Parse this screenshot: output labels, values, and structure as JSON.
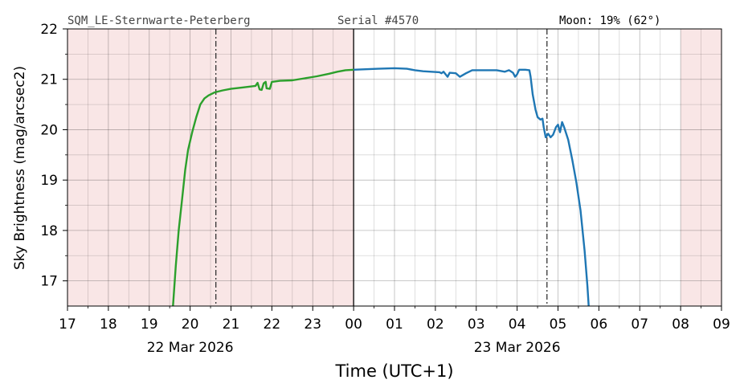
{
  "header": {
    "station": "SQM_LE-Sternwarte-Peterberg",
    "serial": "Serial #4570",
    "moon": "Moon: 19% (62°)"
  },
  "chart_data": {
    "type": "line",
    "title": "",
    "xlabel": "Time (UTC+1)",
    "ylabel": "Sky Brightness (mag/arcsec2)",
    "xlim": [
      17,
      33
    ],
    "ylim": [
      16.5,
      22
    ],
    "x_unit": "hours since 22 Mar 2026 00:00 (UTC+1)",
    "y_ticks": [
      17,
      18,
      19,
      20,
      21,
      22
    ],
    "x_ticks": [
      {
        "x": 17,
        "label": "17"
      },
      {
        "x": 18,
        "label": "18"
      },
      {
        "x": 19,
        "label": "19"
      },
      {
        "x": 20,
        "label": "20"
      },
      {
        "x": 21,
        "label": "21"
      },
      {
        "x": 22,
        "label": "22"
      },
      {
        "x": 23,
        "label": "23"
      },
      {
        "x": 24,
        "label": "00"
      },
      {
        "x": 25,
        "label": "01"
      },
      {
        "x": 26,
        "label": "02"
      },
      {
        "x": 27,
        "label": "03"
      },
      {
        "x": 28,
        "label": "04"
      },
      {
        "x": 29,
        "label": "05"
      },
      {
        "x": 30,
        "label": "06"
      },
      {
        "x": 31,
        "label": "07"
      },
      {
        "x": 32,
        "label": "08"
      },
      {
        "x": 33,
        "label": "09"
      }
    ],
    "date_labels": [
      {
        "x": 20,
        "label": "22 Mar 2026"
      },
      {
        "x": 28,
        "label": "23 Mar 2026"
      }
    ],
    "grid": true,
    "shaded_regions": [
      {
        "x0": 17,
        "x1": 24,
        "color": "#f9e6e6"
      },
      {
        "x0": 32,
        "x1": 33,
        "color": "#f9e6e6"
      }
    ],
    "vertical_lines": [
      {
        "x": 20.63,
        "style": "dashdot",
        "color": "#333333"
      },
      {
        "x": 24.0,
        "style": "solid",
        "color": "#000000"
      },
      {
        "x": 28.73,
        "style": "dashdot",
        "color": "#333333"
      }
    ],
    "series": [
      {
        "color": "#2ca02c",
        "points": [
          [
            19.58,
            16.5
          ],
          [
            19.65,
            17.3
          ],
          [
            19.72,
            18.0
          ],
          [
            19.8,
            18.6
          ],
          [
            19.88,
            19.2
          ],
          [
            19.95,
            19.6
          ],
          [
            20.05,
            19.95
          ],
          [
            20.15,
            20.25
          ],
          [
            20.25,
            20.5
          ],
          [
            20.35,
            20.62
          ],
          [
            20.45,
            20.68
          ],
          [
            20.6,
            20.74
          ],
          [
            20.8,
            20.78
          ],
          [
            21.0,
            20.81
          ],
          [
            21.3,
            20.84
          ],
          [
            21.6,
            20.87
          ],
          [
            21.65,
            20.93
          ],
          [
            21.7,
            20.8
          ],
          [
            21.75,
            20.79
          ],
          [
            21.8,
            20.92
          ],
          [
            21.85,
            20.95
          ],
          [
            21.87,
            20.82
          ],
          [
            21.95,
            20.81
          ],
          [
            22.0,
            20.95
          ],
          [
            22.2,
            20.97
          ],
          [
            22.5,
            20.98
          ],
          [
            22.8,
            21.02
          ],
          [
            23.1,
            21.06
          ],
          [
            23.4,
            21.11
          ],
          [
            23.6,
            21.15
          ],
          [
            23.8,
            21.18
          ],
          [
            24.0,
            21.19
          ]
        ]
      },
      {
        "color": "#1f77b4",
        "points": [
          [
            24.0,
            21.19
          ],
          [
            24.3,
            21.2
          ],
          [
            24.6,
            21.21
          ],
          [
            25.0,
            21.22
          ],
          [
            25.3,
            21.21
          ],
          [
            25.5,
            21.18
          ],
          [
            25.7,
            21.16
          ],
          [
            25.9,
            21.15
          ],
          [
            26.1,
            21.14
          ],
          [
            26.15,
            21.12
          ],
          [
            26.2,
            21.15
          ],
          [
            26.3,
            21.05
          ],
          [
            26.35,
            21.13
          ],
          [
            26.5,
            21.12
          ],
          [
            26.6,
            21.05
          ],
          [
            26.75,
            21.12
          ],
          [
            26.9,
            21.18
          ],
          [
            27.2,
            21.18
          ],
          [
            27.5,
            21.18
          ],
          [
            27.7,
            21.15
          ],
          [
            27.8,
            21.18
          ],
          [
            27.9,
            21.13
          ],
          [
            27.95,
            21.05
          ],
          [
            28.0,
            21.1
          ],
          [
            28.05,
            21.19
          ],
          [
            28.2,
            21.19
          ],
          [
            28.3,
            21.18
          ],
          [
            28.33,
            21.05
          ],
          [
            28.38,
            20.7
          ],
          [
            28.45,
            20.4
          ],
          [
            28.5,
            20.25
          ],
          [
            28.57,
            20.2
          ],
          [
            28.62,
            20.22
          ],
          [
            28.65,
            20.05
          ],
          [
            28.7,
            19.85
          ],
          [
            28.76,
            19.92
          ],
          [
            28.82,
            19.85
          ],
          [
            28.88,
            19.9
          ],
          [
            28.95,
            20.05
          ],
          [
            29.0,
            20.1
          ],
          [
            29.05,
            19.95
          ],
          [
            29.1,
            20.15
          ],
          [
            29.15,
            20.05
          ],
          [
            29.25,
            19.8
          ],
          [
            29.35,
            19.4
          ],
          [
            29.45,
            18.95
          ],
          [
            29.55,
            18.4
          ],
          [
            29.65,
            17.6
          ],
          [
            29.72,
            16.9
          ],
          [
            29.75,
            16.5
          ]
        ]
      }
    ]
  }
}
